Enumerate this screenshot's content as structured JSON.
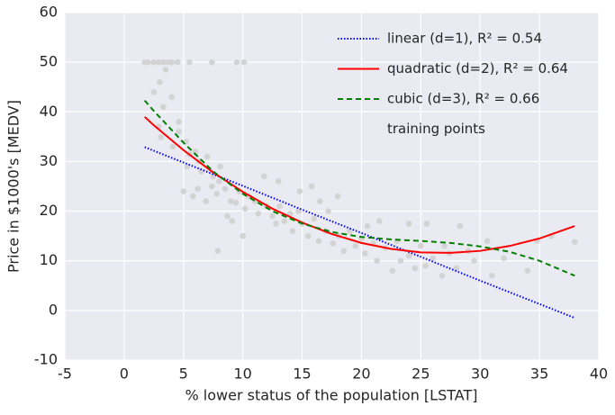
{
  "chart_data": {
    "type": "scatter+line",
    "xlabel": "% lower status of the population [LSTAT]",
    "ylabel": "Price in $1000's [MEDV]",
    "xlim": [
      -5,
      40
    ],
    "ylim": [
      -10,
      60
    ],
    "xticks": [
      -5,
      0,
      5,
      10,
      15,
      20,
      25,
      30,
      35,
      40
    ],
    "yticks": [
      -10,
      0,
      10,
      20,
      30,
      40,
      50,
      60
    ],
    "grid": true,
    "background": "#eaeaf2",
    "legend": "upper right",
    "scatter": {
      "name": "training points",
      "color": "#d3d3d3",
      "x": [
        1.73,
        2.0,
        2.5,
        2.9,
        3.3,
        3.7,
        4.0,
        4.5,
        5.5,
        7.4,
        9.5,
        10.1,
        2.5,
        3.0,
        3.5,
        4.0,
        3.3,
        4.6,
        2.9,
        3.1,
        4.1,
        4.6,
        5.2,
        5.5,
        5.3,
        6.0,
        6.3,
        6.5,
        7.0,
        7.4,
        7.5,
        8.0,
        8.1,
        8.5,
        9.0,
        9.4,
        9.7,
        10.2,
        10.5,
        11.0,
        11.3,
        12.0,
        12.5,
        12.8,
        13.1,
        13.5,
        14.0,
        14.2,
        14.7,
        15.0,
        15.5,
        16.0,
        16.4,
        17.0,
        17.2,
        17.6,
        18.1,
        18.5,
        19.0,
        19.5,
        20.0,
        20.3,
        21.0,
        21.3,
        22.0,
        22.6,
        23.0,
        23.3,
        24.0,
        24.5,
        25.0,
        25.4,
        26.0,
        26.8,
        27.0,
        27.4,
        28.0,
        28.3,
        29.0,
        29.5,
        30.6,
        31.0,
        32.0,
        34.0,
        34.8,
        36.0,
        37.97,
        5.0,
        5.8,
        6.2,
        6.9,
        7.8,
        8.7,
        9.1,
        11.8,
        13.0,
        14.8,
        16.5,
        7.9,
        10.0,
        15.8,
        18.0,
        21.5,
        24.0,
        25.5,
        20.5
      ],
      "values": [
        50,
        50,
        50,
        50,
        50,
        50,
        50,
        50,
        50,
        50,
        50,
        50,
        44,
        46,
        48.5,
        43,
        41,
        38,
        37,
        34.9,
        33,
        36,
        34,
        31.5,
        29,
        32,
        30,
        28,
        31,
        25,
        27,
        26,
        29,
        24.5,
        22,
        21.7,
        24,
        20.5,
        23,
        22,
        19.5,
        21,
        19,
        17.5,
        21,
        18,
        19.5,
        16,
        20,
        17.5,
        15,
        18.5,
        14,
        16,
        20,
        13.5,
        15,
        12,
        16,
        13,
        14.5,
        11.5,
        13.5,
        10,
        12.6,
        8,
        14,
        10,
        11,
        8.5,
        13,
        9,
        10.5,
        7,
        13,
        11.5,
        8.5,
        17,
        12,
        10,
        14,
        7,
        10.5,
        8,
        14,
        15,
        13.8,
        24,
        23,
        24.5,
        22,
        23.5,
        19,
        18,
        27,
        26,
        24,
        22,
        12,
        15,
        25,
        23,
        18,
        17.5,
        17.5,
        17
      ]
    },
    "series": [
      {
        "name": "linear (d=1), R² = 0.54",
        "color": "blue",
        "style": "dotted",
        "x": [
          1.73,
          5,
          10,
          15,
          20,
          25,
          30,
          35,
          37.97
        ],
        "values": [
          32.9,
          29.8,
          25.1,
          20.3,
          15.6,
          10.8,
          6.0,
          1.3,
          -1.5
        ]
      },
      {
        "name": "quadratic (d=2), R² = 0.64",
        "color": "red",
        "style": "solid",
        "x": [
          1.73,
          2.5,
          5,
          7.5,
          10,
          12.5,
          15,
          17.5,
          20,
          22.5,
          25,
          27.5,
          30,
          32.5,
          35,
          37.97
        ],
        "values": [
          39.0,
          37.3,
          32.3,
          27.8,
          23.9,
          20.5,
          17.7,
          15.4,
          13.6,
          12.4,
          11.7,
          11.6,
          12.0,
          13.0,
          14.5,
          17.0
        ]
      },
      {
        "name": "cubic (d=3), R² = 0.66",
        "color": "green",
        "style": "dashed",
        "x": [
          1.73,
          2.5,
          5,
          7.5,
          10,
          12.5,
          15,
          17.5,
          20,
          22.5,
          25,
          27.5,
          30,
          32.5,
          35,
          37.97
        ],
        "values": [
          42.3,
          40.2,
          33.8,
          28.0,
          23.5,
          20.0,
          17.5,
          15.8,
          14.8,
          14.3,
          14.0,
          13.6,
          12.9,
          11.8,
          10.0,
          7.0
        ]
      }
    ]
  }
}
